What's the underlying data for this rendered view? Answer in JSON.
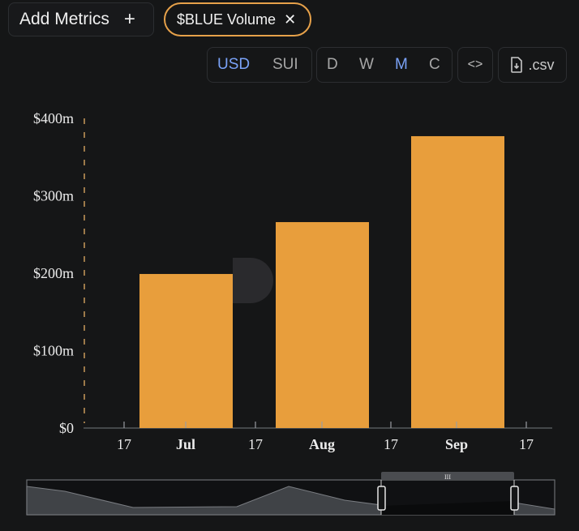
{
  "header": {
    "add_metrics_label": "Add Metrics",
    "add_icon": "plus-icon",
    "metric_chip_label": "$BLUE Volume",
    "close_icon": "close-icon"
  },
  "toolbar": {
    "currency_options": [
      "USD",
      "SUI"
    ],
    "currency_selected": "USD",
    "period_options": [
      "D",
      "W",
      "M",
      "C"
    ],
    "period_selected": "M",
    "embed_icon": "code-icon",
    "csv_label": ".csv",
    "csv_icon": "file-download-icon"
  },
  "colors": {
    "bar": "#e89e3c",
    "accent_blue": "#7aa2f7",
    "chip_border": "#e6a14a",
    "background": "#151617"
  },
  "chart_data": {
    "type": "bar",
    "title": "",
    "xlabel": "",
    "ylabel": "",
    "categories": [
      "Jul",
      "Aug",
      "Sep"
    ],
    "values": [
      199,
      266,
      377
    ],
    "value_unit": "$m",
    "ylim": [
      0,
      400
    ],
    "y_ticks": [
      0,
      100,
      200,
      300,
      400
    ],
    "y_tick_labels": [
      "$0",
      "$100m",
      "$200m",
      "$300m",
      "$400m"
    ],
    "x_tick_labels": [
      "17",
      "Jul",
      "17",
      "Aug",
      "17",
      "Sep",
      "17"
    ],
    "grid": false,
    "legend": "none"
  }
}
